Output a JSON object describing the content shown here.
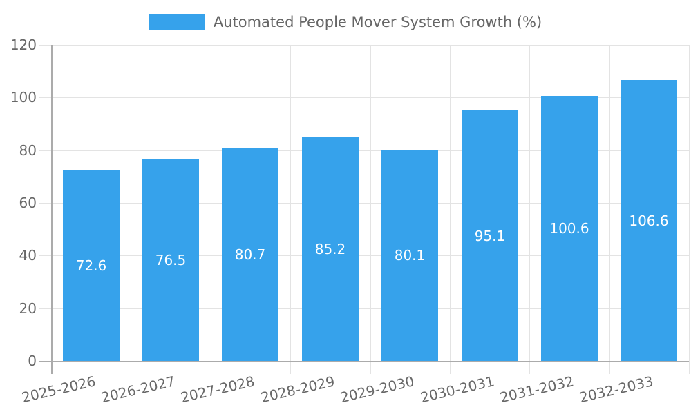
{
  "chart_data": {
    "type": "bar",
    "title": "Automated People Mover System Growth (%)",
    "legend": {
      "position": "top",
      "label": "Automated People Mover System Growth (%)"
    },
    "categories": [
      "2025-2026",
      "2026-2027",
      "2027-2028",
      "2028-2029",
      "2029-2030",
      "2030-2031",
      "2031-2032",
      "2032-2033"
    ],
    "values": [
      72.6,
      76.5,
      80.7,
      85.2,
      80.1,
      95.1,
      100.6,
      106.6
    ],
    "value_labels": [
      "72.6",
      "76.5",
      "80.7",
      "85.2",
      "80.1",
      "95.1",
      "100.6",
      "106.6"
    ],
    "xlabel": "",
    "ylabel": "",
    "ylim": [
      0,
      120
    ],
    "yticks": [
      0,
      20,
      40,
      60,
      80,
      100,
      120
    ],
    "grid": true,
    "colors": {
      "bar": "#36A2EB",
      "bar_value_text": "#ffffff",
      "tick_text": "#686868",
      "legend_text": "#666666",
      "gridline": "#e3e3e3",
      "axis_line": "#ababab"
    }
  }
}
